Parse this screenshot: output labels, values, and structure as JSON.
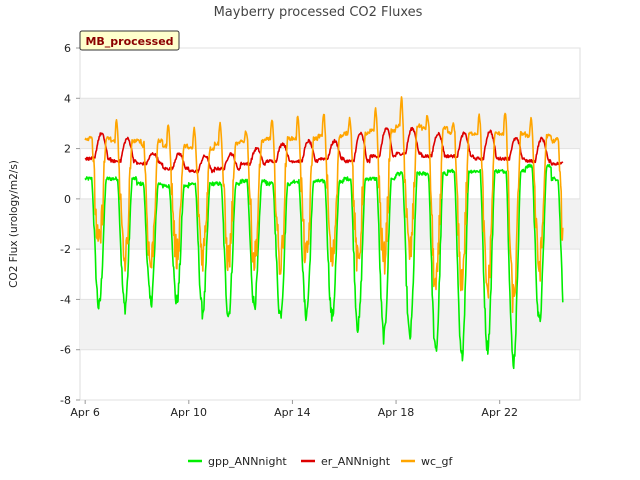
{
  "chart_data": {
    "type": "line",
    "title": "Mayberry processed CO2 Fluxes",
    "xlabel": "",
    "ylabel": "CO2 Flux (urology/m2/s)",
    "badge": "MB_processed",
    "ylim": [
      -8,
      6
    ],
    "yticks": [
      -8,
      -6,
      -4,
      -2,
      0,
      2,
      4,
      6
    ],
    "xlim_days": [
      5.8,
      25.1
    ],
    "xticks": [
      {
        "day": 6,
        "label": "Apr 6"
      },
      {
        "day": 10,
        "label": "Apr 10"
      },
      {
        "day": 14,
        "label": "Apr 14"
      },
      {
        "day": 18,
        "label": "Apr 18"
      },
      {
        "day": 22,
        "label": "Apr 22"
      }
    ],
    "grid": true,
    "legend_position": "bottom",
    "series": [
      {
        "name": "gpp_ANNnight",
        "color": "#00ee00",
        "daily_night_level": [
          0.8,
          0.8,
          0.6,
          0.5,
          0.6,
          0.6,
          0.7,
          0.6,
          0.7,
          0.7,
          0.8,
          0.8,
          1.0,
          1.0,
          1.1,
          1.1,
          1.1,
          1.3,
          0.8
        ],
        "daily_midday_min": [
          -4.3,
          -4.3,
          -4.1,
          -4.1,
          -4.5,
          -4.6,
          -4.2,
          -4.6,
          -4.6,
          -4.7,
          -5.1,
          -5.5,
          -5.5,
          -6.1,
          -6.3,
          -5.9,
          -6.5,
          -4.9
        ]
      },
      {
        "name": "er_ANNnight",
        "color": "#dd0000",
        "daily_min": [
          1.6,
          1.5,
          1.4,
          1.2,
          1.1,
          1.2,
          1.4,
          1.5,
          1.5,
          1.6,
          1.5,
          1.7,
          1.8,
          1.7,
          1.7,
          1.6,
          1.6,
          1.5,
          1.4
        ],
        "daily_max": [
          2.6,
          2.4,
          1.8,
          1.8,
          1.7,
          1.8,
          2.0,
          2.2,
          2.3,
          2.3,
          2.6,
          2.8,
          2.8,
          2.6,
          2.6,
          2.7,
          2.4,
          2.4,
          1.7
        ]
      },
      {
        "name": "wc_gf",
        "color": "#ffa500",
        "daily_night_level": [
          2.4,
          2.3,
          2.3,
          2.1,
          2.0,
          2.2,
          2.3,
          2.4,
          2.4,
          2.5,
          2.6,
          2.7,
          2.9,
          2.8,
          2.6,
          2.6,
          2.6,
          2.5,
          2.3
        ],
        "daily_peak": [
          2.5,
          3.1,
          2.1,
          3.0,
          2.8,
          3.0,
          2.7,
          3.1,
          3.3,
          3.4,
          3.2,
          3.6,
          4.0,
          3.3,
          3.0,
          3.3,
          3.4,
          3.2,
          2.4
        ],
        "daily_midday_min": [
          -1.9,
          -2.5,
          -2.6,
          -2.2,
          -2.2,
          -2.4,
          -2.4,
          -2.6,
          -2.4,
          -2.5,
          -2.6,
          -2.4,
          -2.2,
          -3.6,
          -3.2,
          -3.6,
          -4.0,
          -2.7
        ]
      }
    ]
  }
}
